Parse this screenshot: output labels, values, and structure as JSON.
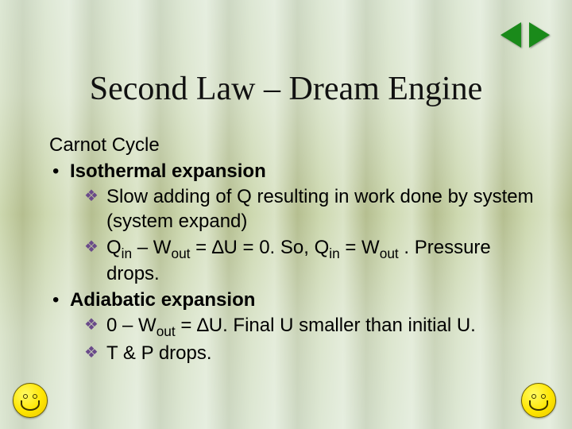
{
  "title": "Second Law – Dream Engine",
  "subtitle": "Carnot Cycle",
  "sections": [
    {
      "heading": "Isothermal expansion",
      "points": [
        "Slow adding of Q resulting in work done by system (system expand)",
        "Q<sub>in</sub> – W<sub>out</sub> = ∆U = 0. So, Q<sub>in</sub> = W<sub>out</sub> . Pressure drops."
      ]
    },
    {
      "heading": "Adiabatic expansion",
      "points": [
        "0 – W<sub>out</sub> = ∆U. Final U smaller than initial U.",
        "T & P drops."
      ]
    }
  ],
  "nav": {
    "prev": "Previous slide",
    "next": "Next slide"
  },
  "decor": {
    "smiley": "smiley-face"
  }
}
